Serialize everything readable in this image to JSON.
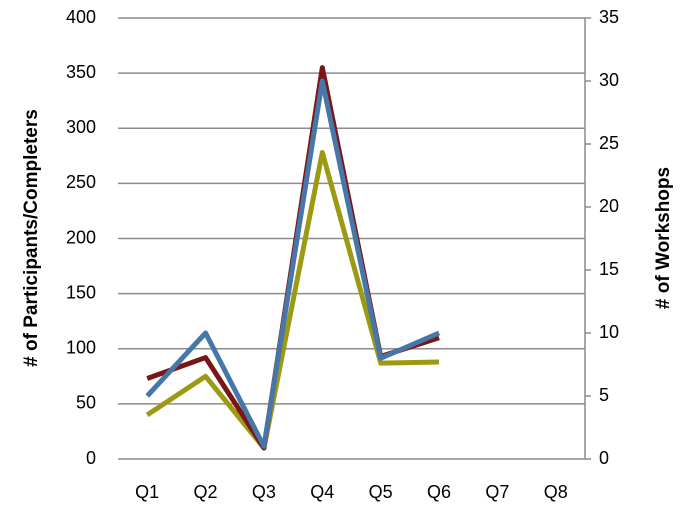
{
  "chart_data": {
    "type": "line",
    "categories": [
      "Q1",
      "Q2",
      "Q3",
      "Q4",
      "Q5",
      "Q6",
      "Q7",
      "Q8"
    ],
    "series": [
      {
        "color": "#9c9a12",
        "values": [
          40,
          75,
          10,
          278,
          87,
          88,
          null,
          null
        ]
      },
      {
        "color": "#7a1616",
        "values": [
          73,
          92,
          10,
          355,
          93,
          110,
          null,
          null
        ]
      },
      {
        "color": "#4677a8",
        "axis": "y2",
        "values": [
          5,
          10,
          1,
          30,
          8,
          10,
          null,
          null
        ]
      }
    ],
    "ylabel": "# of Participants/Completers",
    "y2label": "# of Workshops",
    "ylim": [
      0,
      400
    ],
    "yticks": [
      0,
      50,
      100,
      150,
      200,
      250,
      300,
      350,
      400
    ],
    "y2lim": [
      0,
      35
    ],
    "y2ticks": [
      0,
      5,
      10,
      15,
      20,
      25,
      30,
      35
    ],
    "grid": true
  }
}
